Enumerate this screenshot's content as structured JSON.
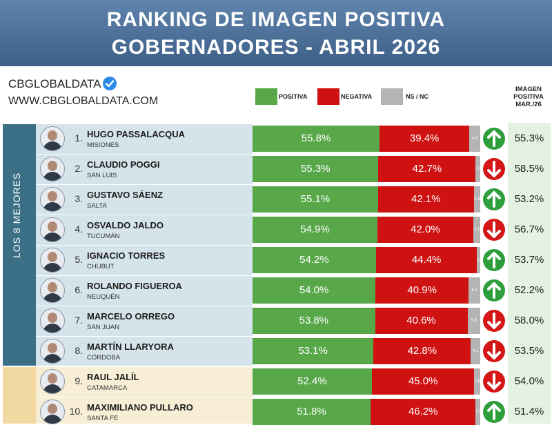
{
  "header": {
    "title_line1": "RANKING DE IMAGEN POSITIVA",
    "title_line2": "GOBERNADORES - ABRIL 2026"
  },
  "brand": {
    "name": "CBGLOBALDATA",
    "url": "WWW.CBGLOBALDATA.COM"
  },
  "legend": {
    "positiva": "POSITIVA",
    "negativa": "NEGATIVA",
    "nsnc": "NS / NC"
  },
  "mar_header": [
    "IMAGEN",
    "POSITIVA",
    "MAR./26"
  ],
  "group_label": "LOS 8 MEJORES",
  "colors": {
    "positiva": "#58a84a",
    "negativa": "#cf1111",
    "nsnc": "#b4b4b4",
    "header": "#4a6f98",
    "band_top": "#3a6f86",
    "band_bottom": "#f1d9a1",
    "up_arrow": "#2e9e3a",
    "down_arrow": "#d41616"
  },
  "chart_data": {
    "type": "bar",
    "stacked": true,
    "orientation": "horizontal",
    "title": "RANKING DE IMAGEN POSITIVA GOBERNADORES - ABRIL 2026",
    "series": [
      {
        "name": "POSITIVA",
        "values": [
          55.8,
          55.3,
          55.1,
          54.9,
          54.2,
          54.0,
          53.8,
          53.1,
          52.4,
          51.8
        ]
      },
      {
        "name": "NEGATIVA",
        "values": [
          39.4,
          42.7,
          42.1,
          42.0,
          44.4,
          40.9,
          40.6,
          42.8,
          45.0,
          46.2
        ]
      },
      {
        "name": "NS / NC",
        "values": [
          4.8,
          2.0,
          2.8,
          3.1,
          1.4,
          5.1,
          5.6,
          4.1,
          2.6,
          2.0
        ]
      }
    ],
    "rows": [
      {
        "rank": "1.",
        "name": "HUGO PASSALACQUA",
        "province": "MISIONES",
        "positiva": 55.8,
        "negativa": 39.4,
        "nsnc": 4.8,
        "positiva_label": "55.8%",
        "negativa_label": "39.4%",
        "nsnc_label": "4.8",
        "trend": "up",
        "previous": 55.3,
        "previous_label": "55.3%"
      },
      {
        "rank": "2.",
        "name": "CLAUDIO POGGI",
        "province": "SAN LUIS",
        "positiva": 55.3,
        "negativa": 42.7,
        "nsnc": 2.0,
        "positiva_label": "55.3%",
        "negativa_label": "42.7%",
        "nsnc_label": "2.0",
        "trend": "down",
        "previous": 58.5,
        "previous_label": "58.5%"
      },
      {
        "rank": "3.",
        "name": "GUSTAVO SÁENZ",
        "province": "SALTA",
        "positiva": 55.1,
        "negativa": 42.1,
        "nsnc": 2.8,
        "positiva_label": "55.1%",
        "negativa_label": "42.1%",
        "nsnc_label": "2.8",
        "trend": "up",
        "previous": 53.2,
        "previous_label": "53.2%"
      },
      {
        "rank": "4.",
        "name": "OSVALDO JALDO",
        "province": "TUCUMÁN",
        "positiva": 54.9,
        "negativa": 42.0,
        "nsnc": 3.1,
        "positiva_label": "54.9%",
        "negativa_label": "42.0%",
        "nsnc_label": "3.1",
        "trend": "down",
        "previous": 56.7,
        "previous_label": "56.7%"
      },
      {
        "rank": "5.",
        "name": "IGNACIO TORRES",
        "province": "CHUBUT",
        "positiva": 54.2,
        "negativa": 44.4,
        "nsnc": 1.4,
        "positiva_label": "54.2%",
        "negativa_label": "44.4%",
        "nsnc_label": "1.4",
        "trend": "up",
        "previous": 53.7,
        "previous_label": "53.7%"
      },
      {
        "rank": "6.",
        "name": "ROLANDO FIGUEROA",
        "province": "NEUQUÉN",
        "positiva": 54.0,
        "negativa": 40.9,
        "nsnc": 5.1,
        "positiva_label": "54.0%",
        "negativa_label": "40.9%",
        "nsnc_label": "5.1",
        "trend": "up",
        "previous": 52.2,
        "previous_label": "52.2%"
      },
      {
        "rank": "7.",
        "name": "MARCELO ORREGO",
        "province": "SAN JUAN",
        "positiva": 53.8,
        "negativa": 40.6,
        "nsnc": 5.6,
        "positiva_label": "53.8%",
        "negativa_label": "40.6%",
        "nsnc_label": "5.6",
        "trend": "down",
        "previous": 58.0,
        "previous_label": "58.0%"
      },
      {
        "rank": "8.",
        "name": "MARTÍN LLARYORA",
        "province": "CÓRDOBA",
        "positiva": 53.1,
        "negativa": 42.8,
        "nsnc": 4.1,
        "positiva_label": "53.1%",
        "negativa_label": "42.8%",
        "nsnc_label": "4.1",
        "trend": "down",
        "previous": 53.5,
        "previous_label": "53.5%"
      },
      {
        "rank": "9.",
        "name": "RAUL JALÍL",
        "province": "CATAMARCA",
        "positiva": 52.4,
        "negativa": 45.0,
        "nsnc": 2.6,
        "positiva_label": "52.4%",
        "negativa_label": "45.0%",
        "nsnc_label": "2.6",
        "trend": "down",
        "previous": 54.0,
        "previous_label": "54.0%"
      },
      {
        "rank": "10.",
        "name": "MAXIMILIANO PULLARO",
        "province": "SANTA FE",
        "positiva": 51.8,
        "negativa": 46.2,
        "nsnc": 2.0,
        "positiva_label": "51.8%",
        "negativa_label": "46.2%",
        "nsnc_label": "2.0",
        "trend": "up",
        "previous": 51.4,
        "previous_label": "51.4%"
      }
    ]
  }
}
